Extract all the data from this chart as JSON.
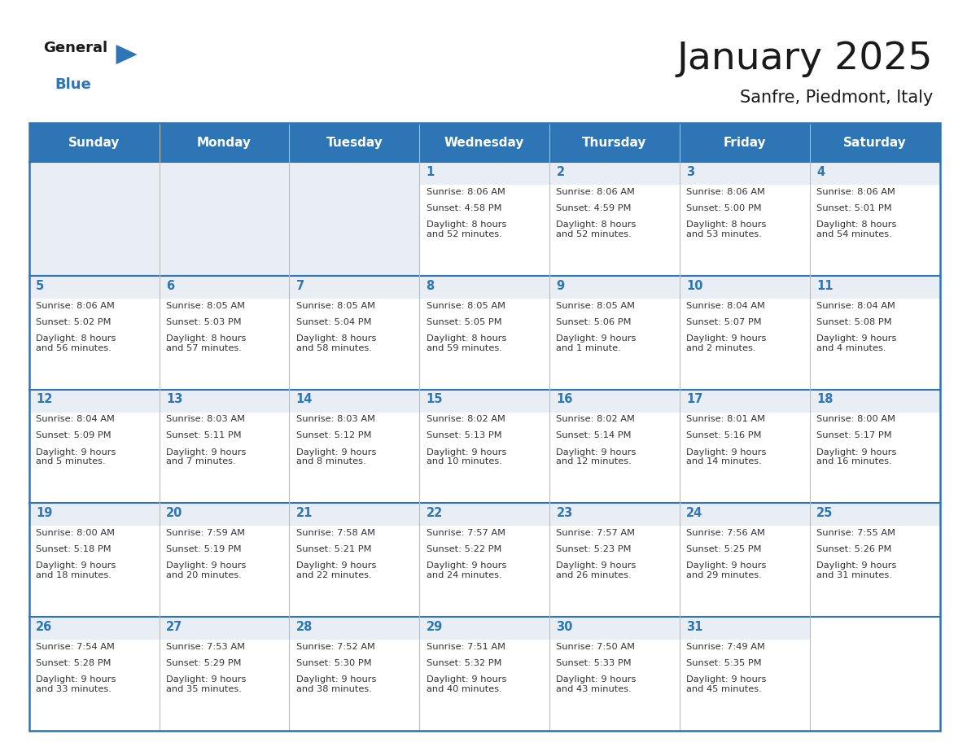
{
  "title": "January 2025",
  "subtitle": "Sanfre, Piedmont, Italy",
  "header_bg": "#2e75b6",
  "header_text_color": "#ffffff",
  "day_num_bg": "#e8eef4",
  "cell_bg": "#ffffff",
  "border_color": "#2e75b6",
  "cell_border_color": "#bbbbbb",
  "day_number_color": "#2e75b6",
  "text_color": "#333333",
  "logo_text_color": "#1a1a1a",
  "logo_blue_color": "#2e75b6",
  "days_of_week": [
    "Sunday",
    "Monday",
    "Tuesday",
    "Wednesday",
    "Thursday",
    "Friday",
    "Saturday"
  ],
  "weeks": [
    [
      {
        "day": "",
        "sunrise": "",
        "sunset": "",
        "daylight": ""
      },
      {
        "day": "",
        "sunrise": "",
        "sunset": "",
        "daylight": ""
      },
      {
        "day": "",
        "sunrise": "",
        "sunset": "",
        "daylight": ""
      },
      {
        "day": "1",
        "sunrise": "8:06 AM",
        "sunset": "4:58 PM",
        "daylight": "8 hours\nand 52 minutes."
      },
      {
        "day": "2",
        "sunrise": "8:06 AM",
        "sunset": "4:59 PM",
        "daylight": "8 hours\nand 52 minutes."
      },
      {
        "day": "3",
        "sunrise": "8:06 AM",
        "sunset": "5:00 PM",
        "daylight": "8 hours\nand 53 minutes."
      },
      {
        "day": "4",
        "sunrise": "8:06 AM",
        "sunset": "5:01 PM",
        "daylight": "8 hours\nand 54 minutes."
      }
    ],
    [
      {
        "day": "5",
        "sunrise": "8:06 AM",
        "sunset": "5:02 PM",
        "daylight": "8 hours\nand 56 minutes."
      },
      {
        "day": "6",
        "sunrise": "8:05 AM",
        "sunset": "5:03 PM",
        "daylight": "8 hours\nand 57 minutes."
      },
      {
        "day": "7",
        "sunrise": "8:05 AM",
        "sunset": "5:04 PM",
        "daylight": "8 hours\nand 58 minutes."
      },
      {
        "day": "8",
        "sunrise": "8:05 AM",
        "sunset": "5:05 PM",
        "daylight": "8 hours\nand 59 minutes."
      },
      {
        "day": "9",
        "sunrise": "8:05 AM",
        "sunset": "5:06 PM",
        "daylight": "9 hours\nand 1 minute."
      },
      {
        "day": "10",
        "sunrise": "8:04 AM",
        "sunset": "5:07 PM",
        "daylight": "9 hours\nand 2 minutes."
      },
      {
        "day": "11",
        "sunrise": "8:04 AM",
        "sunset": "5:08 PM",
        "daylight": "9 hours\nand 4 minutes."
      }
    ],
    [
      {
        "day": "12",
        "sunrise": "8:04 AM",
        "sunset": "5:09 PM",
        "daylight": "9 hours\nand 5 minutes."
      },
      {
        "day": "13",
        "sunrise": "8:03 AM",
        "sunset": "5:11 PM",
        "daylight": "9 hours\nand 7 minutes."
      },
      {
        "day": "14",
        "sunrise": "8:03 AM",
        "sunset": "5:12 PM",
        "daylight": "9 hours\nand 8 minutes."
      },
      {
        "day": "15",
        "sunrise": "8:02 AM",
        "sunset": "5:13 PM",
        "daylight": "9 hours\nand 10 minutes."
      },
      {
        "day": "16",
        "sunrise": "8:02 AM",
        "sunset": "5:14 PM",
        "daylight": "9 hours\nand 12 minutes."
      },
      {
        "day": "17",
        "sunrise": "8:01 AM",
        "sunset": "5:16 PM",
        "daylight": "9 hours\nand 14 minutes."
      },
      {
        "day": "18",
        "sunrise": "8:00 AM",
        "sunset": "5:17 PM",
        "daylight": "9 hours\nand 16 minutes."
      }
    ],
    [
      {
        "day": "19",
        "sunrise": "8:00 AM",
        "sunset": "5:18 PM",
        "daylight": "9 hours\nand 18 minutes."
      },
      {
        "day": "20",
        "sunrise": "7:59 AM",
        "sunset": "5:19 PM",
        "daylight": "9 hours\nand 20 minutes."
      },
      {
        "day": "21",
        "sunrise": "7:58 AM",
        "sunset": "5:21 PM",
        "daylight": "9 hours\nand 22 minutes."
      },
      {
        "day": "22",
        "sunrise": "7:57 AM",
        "sunset": "5:22 PM",
        "daylight": "9 hours\nand 24 minutes."
      },
      {
        "day": "23",
        "sunrise": "7:57 AM",
        "sunset": "5:23 PM",
        "daylight": "9 hours\nand 26 minutes."
      },
      {
        "day": "24",
        "sunrise": "7:56 AM",
        "sunset": "5:25 PM",
        "daylight": "9 hours\nand 29 minutes."
      },
      {
        "day": "25",
        "sunrise": "7:55 AM",
        "sunset": "5:26 PM",
        "daylight": "9 hours\nand 31 minutes."
      }
    ],
    [
      {
        "day": "26",
        "sunrise": "7:54 AM",
        "sunset": "5:28 PM",
        "daylight": "9 hours\nand 33 minutes."
      },
      {
        "day": "27",
        "sunrise": "7:53 AM",
        "sunset": "5:29 PM",
        "daylight": "9 hours\nand 35 minutes."
      },
      {
        "day": "28",
        "sunrise": "7:52 AM",
        "sunset": "5:30 PM",
        "daylight": "9 hours\nand 38 minutes."
      },
      {
        "day": "29",
        "sunrise": "7:51 AM",
        "sunset": "5:32 PM",
        "daylight": "9 hours\nand 40 minutes."
      },
      {
        "day": "30",
        "sunrise": "7:50 AM",
        "sunset": "5:33 PM",
        "daylight": "9 hours\nand 43 minutes."
      },
      {
        "day": "31",
        "sunrise": "7:49 AM",
        "sunset": "5:35 PM",
        "daylight": "9 hours\nand 45 minutes."
      },
      {
        "day": "",
        "sunrise": "",
        "sunset": "",
        "daylight": ""
      }
    ]
  ]
}
